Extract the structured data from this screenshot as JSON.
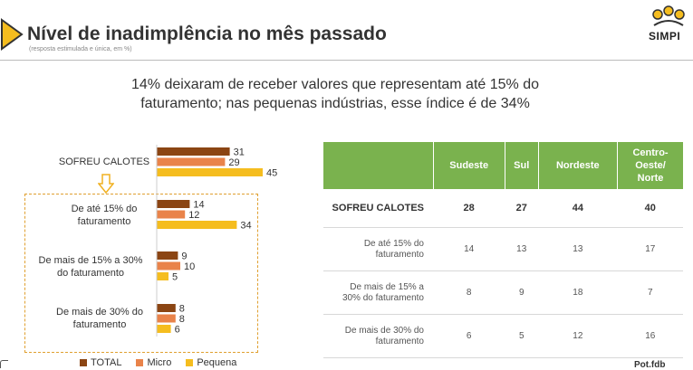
{
  "header": {
    "title": "Nível de inadimplência no mês passado",
    "subtitle": "(resposta estimulada e única, em %)",
    "brand": "SIMPI"
  },
  "headline": {
    "line1": "14% deixaram de receber valores que representam até 15% do",
    "line2": "faturamento; nas pequenas indústrias, esse índice é de 34%"
  },
  "chart_data": {
    "type": "bar",
    "orientation": "horizontal",
    "categories": [
      "SOFREU CALOTES",
      "De até 15% do faturamento",
      "De mais de 15% a 30% do faturamento",
      "De mais de 30% do faturamento"
    ],
    "category_lines": [
      [
        "SOFREU CALOTES"
      ],
      [
        "De até 15% do",
        "faturamento"
      ],
      [
        "De mais de 15% a 30%",
        "do faturamento"
      ],
      [
        "De mais de 30% do",
        "faturamento"
      ]
    ],
    "series": [
      {
        "name": "TOTAL",
        "color": "#8b4513",
        "values": [
          31,
          14,
          9,
          8
        ]
      },
      {
        "name": "Micro",
        "color": "#e9834a",
        "values": [
          29,
          12,
          10,
          8
        ]
      },
      {
        "name": "Pequena",
        "color": "#f5bd1f",
        "values": [
          45,
          34,
          5,
          6
        ]
      }
    ],
    "legend": "bottom"
  },
  "table": {
    "headers": [
      "",
      "Sudeste",
      "Sul",
      "Nordeste",
      "Centro-Oeste/ Norte"
    ],
    "header_lines": [
      [
        "Centro-",
        "Oeste/",
        "Norte"
      ]
    ],
    "rows": [
      {
        "label": "SOFREU CALOTES",
        "values": [
          "28",
          "27",
          "44",
          "40"
        ],
        "main": true
      },
      {
        "label": "De até 15% do faturamento",
        "lines": [
          "De até 15% do",
          "faturamento"
        ],
        "values": [
          "14",
          "13",
          "13",
          "17"
        ]
      },
      {
        "label": "De mais de 15% a 30% do faturamento",
        "lines": [
          "De mais de 15% a",
          "30% do faturamento"
        ],
        "values": [
          "8",
          "9",
          "18",
          "7"
        ]
      },
      {
        "label": "De mais de 30% do faturamento",
        "lines": [
          "De mais de 30% do",
          "faturamento"
        ],
        "values": [
          "6",
          "5",
          "12",
          "16"
        ]
      }
    ]
  },
  "footer": {
    "corner_text": "Pot.fdb"
  },
  "colors": {
    "accent_green": "#7ab24e",
    "arrow": "#f5bd1f",
    "dash": "#e0a030"
  }
}
